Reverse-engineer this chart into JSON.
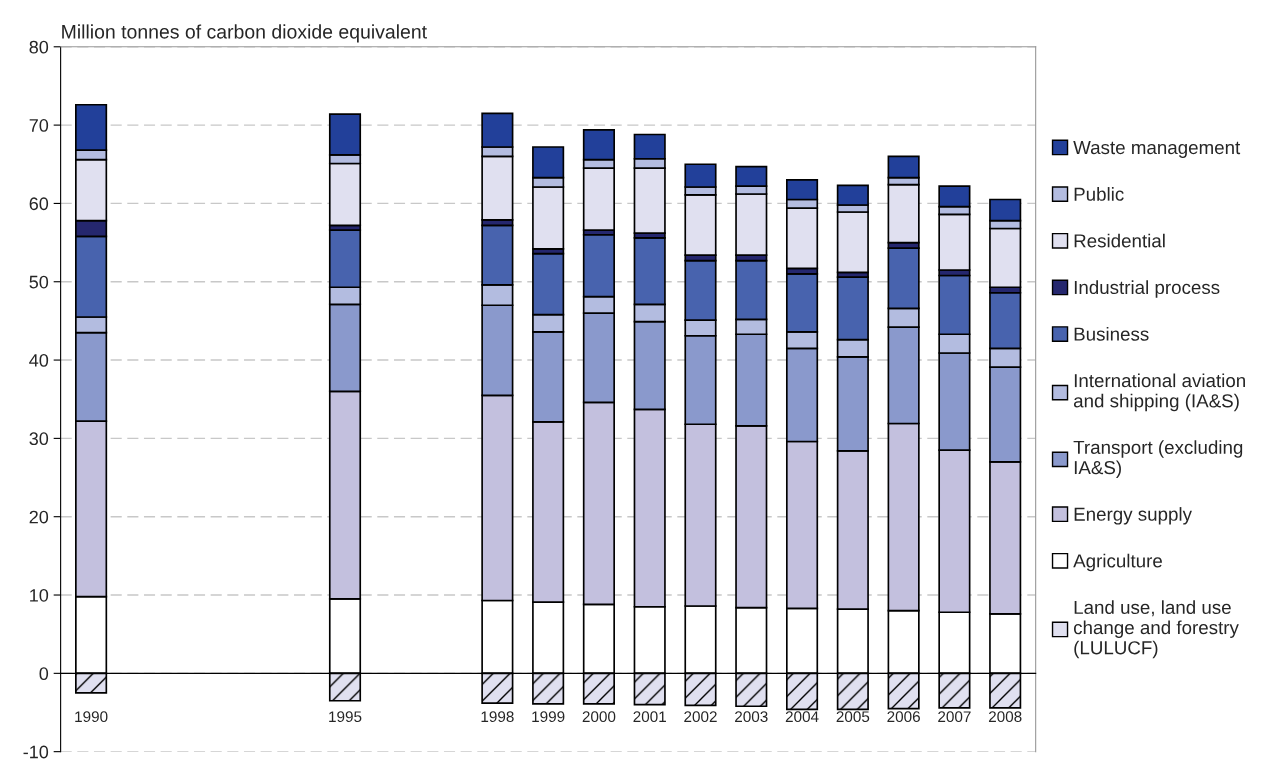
{
  "chart_data": {
    "type": "bar",
    "stacked": true,
    "ylabel": "Million tonnes of carbon dioxide equivalent",
    "categories": [
      "1990",
      null,
      null,
      null,
      null,
      "1995",
      null,
      null,
      "1998",
      "1999",
      "2000",
      "2001",
      "2002",
      "2003",
      "2004",
      "2005",
      "2006",
      "2007",
      "2008"
    ],
    "series": [
      {
        "name": "Agriculture",
        "color": "#ffffff",
        "values": [
          9.8,
          null,
          null,
          null,
          null,
          9.5,
          null,
          null,
          9.3,
          9.1,
          8.8,
          8.5,
          8.6,
          8.4,
          8.3,
          8.2,
          8.0,
          7.8,
          7.6
        ]
      },
      {
        "name": "Energy supply",
        "color": "#c3c0de",
        "values": [
          22.4,
          null,
          null,
          null,
          null,
          26.5,
          null,
          null,
          26.2,
          23.0,
          25.8,
          25.2,
          23.2,
          23.2,
          21.3,
          20.2,
          23.9,
          20.7,
          19.4
        ]
      },
      {
        "name": "Transport (excluding IA&S)",
        "color": "#8a99cc",
        "values": [
          11.3,
          null,
          null,
          null,
          null,
          11.1,
          null,
          null,
          11.5,
          11.5,
          11.4,
          11.2,
          11.3,
          11.7,
          11.9,
          12.0,
          12.3,
          12.4,
          12.1
        ]
      },
      {
        "name": "International aviation and shipping (IA&S)",
        "color": "#b3bce0",
        "values": [
          2.0,
          null,
          null,
          null,
          null,
          2.2,
          null,
          null,
          2.6,
          2.2,
          2.1,
          2.2,
          2.0,
          1.9,
          2.1,
          2.2,
          2.4,
          2.4,
          2.4
        ]
      },
      {
        "name": "Business",
        "color": "#4863ae",
        "values": [
          10.3,
          null,
          null,
          null,
          null,
          7.3,
          null,
          null,
          7.6,
          7.8,
          7.9,
          8.5,
          7.6,
          7.5,
          7.4,
          8.0,
          7.7,
          7.5,
          7.1
        ]
      },
      {
        "name": "Industrial process",
        "color": "#25276e",
        "values": [
          2.0,
          null,
          null,
          null,
          null,
          0.6,
          null,
          null,
          0.7,
          0.6,
          0.6,
          0.6,
          0.7,
          0.7,
          0.7,
          0.6,
          0.7,
          0.7,
          0.7
        ]
      },
      {
        "name": "Residential",
        "color": "#e0e0f0",
        "values": [
          7.8,
          null,
          null,
          null,
          null,
          7.9,
          null,
          null,
          8.1,
          7.9,
          7.9,
          8.3,
          7.7,
          7.8,
          7.7,
          7.7,
          7.4,
          7.1,
          7.5
        ]
      },
      {
        "name": "Public",
        "color": "#b3bce0",
        "values": [
          1.2,
          null,
          null,
          null,
          null,
          1.1,
          null,
          null,
          1.2,
          1.2,
          1.1,
          1.2,
          1.0,
          1.0,
          1.1,
          0.9,
          0.9,
          1.0,
          1.0
        ]
      },
      {
        "name": "Waste management",
        "color": "#22409a",
        "values": [
          5.8,
          null,
          null,
          null,
          null,
          5.2,
          null,
          null,
          4.3,
          3.9,
          3.8,
          3.1,
          2.9,
          2.5,
          2.5,
          2.5,
          2.7,
          2.6,
          2.7
        ]
      },
      {
        "name": "Land use, land use change and forestry (LULUCF)",
        "color": "#e0e0f0",
        "values": [
          -2.5,
          null,
          null,
          null,
          null,
          -3.5,
          null,
          null,
          -3.8,
          -3.9,
          -3.9,
          -4.0,
          -4.1,
          -4.2,
          -4.6,
          -4.6,
          -4.5,
          -4.4,
          -4.4
        ]
      }
    ],
    "ylim": [
      -10,
      80
    ],
    "yticks": [
      -10,
      0,
      10,
      20,
      30,
      40,
      50,
      60,
      70,
      80
    ],
    "grid": "y",
    "legend": "right"
  }
}
